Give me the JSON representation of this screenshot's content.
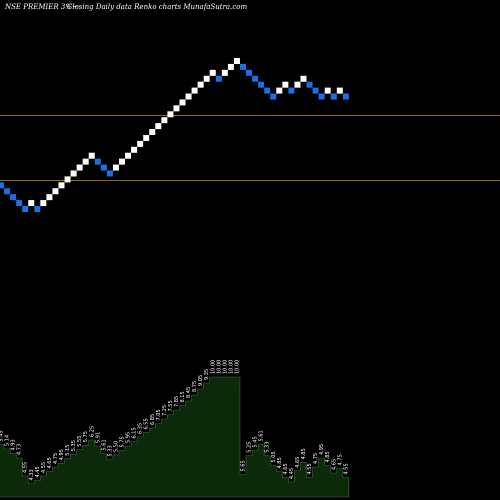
{
  "header": {
    "symbol_text": "NSE PREMIER 3%~",
    "info_text": "Closing Daily data  Renko  charts MunafaSutra.com"
  },
  "colors": {
    "background": "#000000",
    "up_brick": "#ffffff",
    "down_brick": "#1e6fe6",
    "reference_line": "#c98a2b",
    "volume_fill": "#0a2a0a",
    "volume_stroke": "#3e6a3e",
    "text": "#ffffff"
  },
  "chart_data": {
    "type": "renko",
    "title": "NSE PREMIER 3%~ Closing Daily data Renko charts MunafaSutra.com",
    "xlabel": "",
    "ylabel": "",
    "grid": false,
    "reference_levels": [
      115.5,
      180.5
    ],
    "brick_size_ticks": 1,
    "bricks": [
      {
        "i": 0,
        "dir": "down",
        "level": 31
      },
      {
        "i": 1,
        "dir": "down",
        "level": 32
      },
      {
        "i": 2,
        "dir": "down",
        "level": 33
      },
      {
        "i": 3,
        "dir": "down",
        "level": 34
      },
      {
        "i": 4,
        "dir": "down",
        "level": 35
      },
      {
        "i": 5,
        "dir": "up",
        "level": 34
      },
      {
        "i": 6,
        "dir": "down",
        "level": 35
      },
      {
        "i": 7,
        "dir": "up",
        "level": 34
      },
      {
        "i": 8,
        "dir": "up",
        "level": 33
      },
      {
        "i": 9,
        "dir": "up",
        "level": 32
      },
      {
        "i": 10,
        "dir": "up",
        "level": 31
      },
      {
        "i": 11,
        "dir": "up",
        "level": 30
      },
      {
        "i": 12,
        "dir": "up",
        "level": 29
      },
      {
        "i": 13,
        "dir": "up",
        "level": 28
      },
      {
        "i": 14,
        "dir": "up",
        "level": 27
      },
      {
        "i": 15,
        "dir": "up",
        "level": 26
      },
      {
        "i": 16,
        "dir": "down",
        "level": 27
      },
      {
        "i": 17,
        "dir": "down",
        "level": 28
      },
      {
        "i": 18,
        "dir": "down",
        "level": 29
      },
      {
        "i": 19,
        "dir": "up",
        "level": 28
      },
      {
        "i": 20,
        "dir": "up",
        "level": 27
      },
      {
        "i": 21,
        "dir": "up",
        "level": 26
      },
      {
        "i": 22,
        "dir": "up",
        "level": 25
      },
      {
        "i": 23,
        "dir": "up",
        "level": 24
      },
      {
        "i": 24,
        "dir": "up",
        "level": 23
      },
      {
        "i": 25,
        "dir": "up",
        "level": 22
      },
      {
        "i": 26,
        "dir": "up",
        "level": 21
      },
      {
        "i": 27,
        "dir": "up",
        "level": 20
      },
      {
        "i": 28,
        "dir": "up",
        "level": 19
      },
      {
        "i": 29,
        "dir": "up",
        "level": 18
      },
      {
        "i": 30,
        "dir": "up",
        "level": 17
      },
      {
        "i": 31,
        "dir": "up",
        "level": 16
      },
      {
        "i": 32,
        "dir": "up",
        "level": 15
      },
      {
        "i": 33,
        "dir": "up",
        "level": 14
      },
      {
        "i": 34,
        "dir": "up",
        "level": 13
      },
      {
        "i": 35,
        "dir": "up",
        "level": 12
      },
      {
        "i": 36,
        "dir": "down",
        "level": 13
      },
      {
        "i": 37,
        "dir": "up",
        "level": 12
      },
      {
        "i": 38,
        "dir": "up",
        "level": 11
      },
      {
        "i": 39,
        "dir": "up",
        "level": 10
      },
      {
        "i": 40,
        "dir": "down",
        "level": 11
      },
      {
        "i": 41,
        "dir": "down",
        "level": 12
      },
      {
        "i": 42,
        "dir": "down",
        "level": 13
      },
      {
        "i": 43,
        "dir": "down",
        "level": 14
      },
      {
        "i": 44,
        "dir": "down",
        "level": 15
      },
      {
        "i": 45,
        "dir": "down",
        "level": 16
      },
      {
        "i": 46,
        "dir": "up",
        "level": 15
      },
      {
        "i": 47,
        "dir": "up",
        "level": 14
      },
      {
        "i": 48,
        "dir": "down",
        "level": 15
      },
      {
        "i": 49,
        "dir": "up",
        "level": 14
      },
      {
        "i": 50,
        "dir": "up",
        "level": 13
      },
      {
        "i": 51,
        "dir": "down",
        "level": 14
      },
      {
        "i": 52,
        "dir": "down",
        "level": 15
      },
      {
        "i": 53,
        "dir": "down",
        "level": 16
      },
      {
        "i": 54,
        "dir": "up",
        "level": 15
      },
      {
        "i": 55,
        "dir": "down",
        "level": 16
      },
      {
        "i": 56,
        "dir": "up",
        "level": 15
      },
      {
        "i": 57,
        "dir": "down",
        "level": 16
      }
    ],
    "volume_area": [
      {
        "i": 0,
        "v": 0.7,
        "label": "5.45"
      },
      {
        "i": 1,
        "v": 0.64,
        "label": "5.14"
      },
      {
        "i": 2,
        "v": 0.58,
        "label": "4.93"
      },
      {
        "i": 3,
        "v": 0.52,
        "label": "4.73"
      },
      {
        "i": 4,
        "v": 0.28,
        "label": "4.55"
      },
      {
        "i": 5,
        "v": 0.18,
        "label": "4.33"
      },
      {
        "i": 6,
        "v": 0.22,
        "label": "4.45"
      },
      {
        "i": 7,
        "v": 0.28,
        "label": "4.55"
      },
      {
        "i": 8,
        "v": 0.34,
        "label": "4.65"
      },
      {
        "i": 9,
        "v": 0.4,
        "label": "4.75"
      },
      {
        "i": 10,
        "v": 0.45,
        "label": "4.95"
      },
      {
        "i": 11,
        "v": 0.51,
        "label": "5.15"
      },
      {
        "i": 12,
        "v": 0.57,
        "label": "5.35"
      },
      {
        "i": 13,
        "v": 0.63,
        "label": "5.55"
      },
      {
        "i": 14,
        "v": 0.69,
        "label": "5.75"
      },
      {
        "i": 15,
        "v": 0.76,
        "label": "6.25"
      },
      {
        "i": 16,
        "v": 0.68,
        "label": "5.91"
      },
      {
        "i": 17,
        "v": 0.58,
        "label": "5.61"
      },
      {
        "i": 18,
        "v": 0.5,
        "label": "5.33"
      },
      {
        "i": 19,
        "v": 0.56,
        "label": "5.50"
      },
      {
        "i": 20,
        "v": 0.62,
        "label": "5.75"
      },
      {
        "i": 21,
        "v": 0.68,
        "label": "5.95"
      },
      {
        "i": 22,
        "v": 0.74,
        "label": "6.15"
      },
      {
        "i": 23,
        "v": 0.8,
        "label": "6.35"
      },
      {
        "i": 24,
        "v": 0.86,
        "label": "6.55"
      },
      {
        "i": 25,
        "v": 0.92,
        "label": "6.85"
      },
      {
        "i": 26,
        "v": 0.98,
        "label": "7.05"
      },
      {
        "i": 27,
        "v": 1.04,
        "label": "7.25"
      },
      {
        "i": 28,
        "v": 1.1,
        "label": "7.55"
      },
      {
        "i": 29,
        "v": 1.16,
        "label": "7.85"
      },
      {
        "i": 30,
        "v": 1.22,
        "label": "8.15"
      },
      {
        "i": 31,
        "v": 1.28,
        "label": "8.45"
      },
      {
        "i": 32,
        "v": 1.36,
        "label": "8.75"
      },
      {
        "i": 33,
        "v": 1.44,
        "label": "9.05"
      },
      {
        "i": 34,
        "v": 1.52,
        "label": "9.35"
      },
      {
        "i": 35,
        "v": 1.6,
        "label": "10.00"
      },
      {
        "i": 36,
        "v": 1.6,
        "label": "10.00"
      },
      {
        "i": 37,
        "v": 1.6,
        "label": "10.00"
      },
      {
        "i": 38,
        "v": 1.6,
        "label": "10.00"
      },
      {
        "i": 39,
        "v": 1.6,
        "label": "10.00"
      },
      {
        "i": 40,
        "v": 0.3,
        "label": "5.65"
      },
      {
        "i": 41,
        "v": 0.55,
        "label": "5.25"
      },
      {
        "i": 42,
        "v": 0.62,
        "label": "5.45"
      },
      {
        "i": 43,
        "v": 0.7,
        "label": "5.61"
      },
      {
        "i": 44,
        "v": 0.55,
        "label": "5.33"
      },
      {
        "i": 45,
        "v": 0.42,
        "label": "5.05"
      },
      {
        "i": 46,
        "v": 0.34,
        "label": "4.85"
      },
      {
        "i": 47,
        "v": 0.26,
        "label": "4.65"
      },
      {
        "i": 48,
        "v": 0.2,
        "label": "4.45"
      },
      {
        "i": 49,
        "v": 0.35,
        "label": "4.65"
      },
      {
        "i": 50,
        "v": 0.46,
        "label": "4.85"
      },
      {
        "i": 51,
        "v": 0.26,
        "label": "4.55"
      },
      {
        "i": 52,
        "v": 0.4,
        "label": "4.75"
      },
      {
        "i": 53,
        "v": 0.52,
        "label": "4.95"
      },
      {
        "i": 54,
        "v": 0.42,
        "label": "4.85"
      },
      {
        "i": 55,
        "v": 0.32,
        "label": "4.65"
      },
      {
        "i": 56,
        "v": 0.38,
        "label": "4.75"
      },
      {
        "i": 57,
        "v": 0.26,
        "label": "4.55"
      }
    ]
  }
}
